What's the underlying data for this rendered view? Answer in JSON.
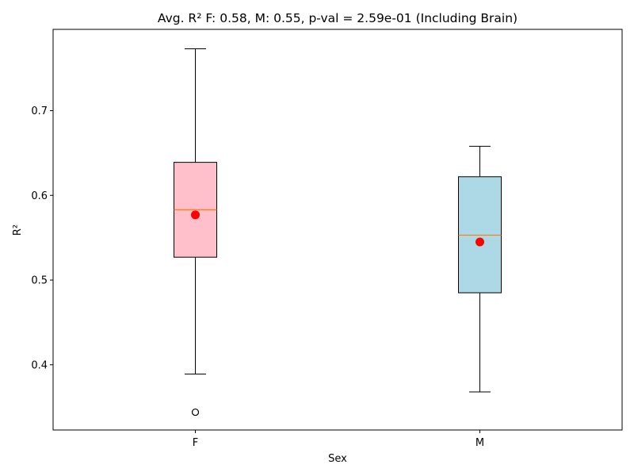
{
  "chart_data": {
    "type": "box",
    "title": "Avg. R² F: 0.58, M: 0.55, p-val = 2.59e-01 (Including Brain)",
    "xlabel": "Sex",
    "ylabel": "R²",
    "ylim": [
      0.323,
      0.796
    ],
    "yticks": [
      0.4,
      0.5,
      0.6,
      0.7
    ],
    "ytick_labels": [
      "0.4",
      "0.5",
      "0.6",
      "0.7"
    ],
    "grid": false,
    "categories": [
      "F",
      "M"
    ],
    "boxes": [
      {
        "category": "F",
        "whisker_low": 0.389,
        "q1": 0.527,
        "median": 0.583,
        "q3": 0.639,
        "whisker_high": 0.773,
        "mean": 0.577,
        "outliers": [
          0.344
        ],
        "fill": "#ffc0cb"
      },
      {
        "category": "M",
        "whisker_low": 0.368,
        "q1": 0.485,
        "median": 0.553,
        "q3": 0.622,
        "whisker_high": 0.658,
        "mean": 0.545,
        "outliers": [],
        "fill": "#add8e6"
      }
    ],
    "median_color": "#ff7f0e",
    "mean_color": "#ff0000"
  }
}
